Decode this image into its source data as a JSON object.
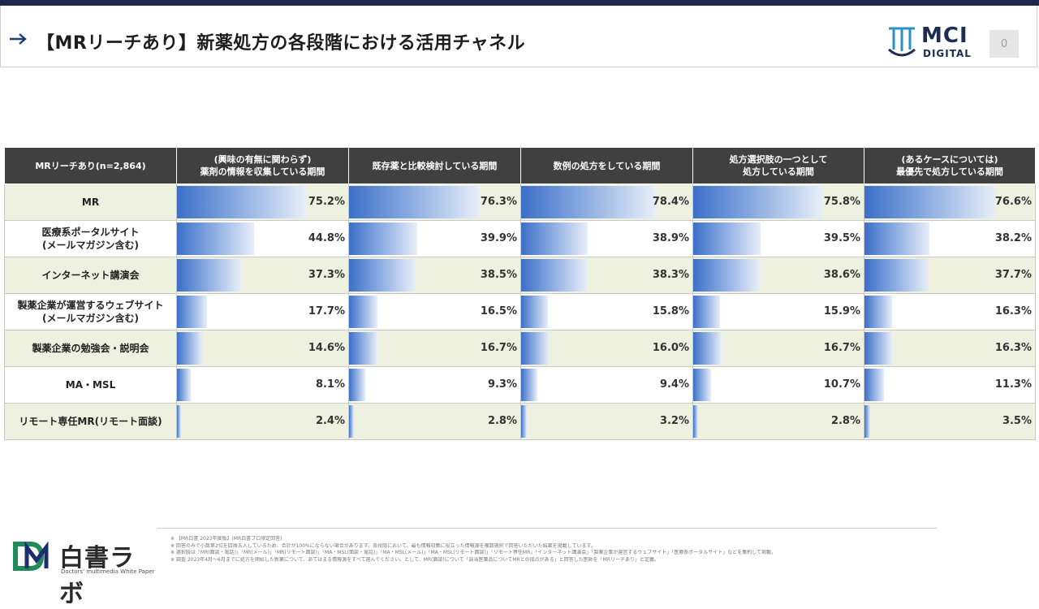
{
  "header": {
    "title": "【MRリーチあり】新薬処方の各段階における活用チャネル",
    "brand_line1": "MCI",
    "brand_line2": "DIGITAL",
    "page_number": "0"
  },
  "chart_data": {
    "type": "table",
    "corner_label": "MRリーチあり(n=2,864)",
    "columns": [
      "(興味の有無に関わらず)\n薬剤の情報を収集している期間",
      "既存薬と比較検討している期間",
      "数例の処方をしている期間",
      "処方選択肢の一つとして\n処方している期間",
      "(あるケースについては)\n最優先で処方している期間"
    ],
    "rows": [
      {
        "label": "MR",
        "values": [
          75.2,
          76.3,
          78.4,
          75.8,
          76.6
        ]
      },
      {
        "label": "医療系ポータルサイト\n(メールマガジン含む)",
        "values": [
          44.8,
          39.9,
          38.9,
          39.5,
          38.2
        ]
      },
      {
        "label": "インターネット講演会",
        "values": [
          37.3,
          38.5,
          38.3,
          38.6,
          37.7
        ]
      },
      {
        "label": "製薬企業が運営するウェブサイト\n(メールマガジン含む)",
        "values": [
          17.7,
          16.5,
          15.8,
          15.9,
          16.3
        ]
      },
      {
        "label": "製薬企業の勉強会・説明会",
        "values": [
          14.6,
          16.7,
          16.0,
          16.7,
          16.3
        ]
      },
      {
        "label": "MA・MSL",
        "values": [
          8.1,
          9.3,
          9.4,
          10.7,
          11.3
        ]
      },
      {
        "label": "リモート専任MR(リモート面談)",
        "values": [
          2.4,
          2.8,
          3.2,
          2.8,
          3.5
        ]
      }
    ],
    "unit": "%",
    "bar_scale_max": 100,
    "colors": {
      "bar": "#3c6fc7",
      "header_bg": "#404040",
      "row_alt": "#eef0e0"
    }
  },
  "footer": {
    "brand": "白書ラボ",
    "brand_sub": "Doctors' multimedia White Paper",
    "notes": [
      "※ 【MR白書 2023年度版】(MR白書プロ限定回答)",
      "※ 回答のみで小数第2位を四捨五入しているため、合計が100%にならない場合があります。各段階において、最も情報収集に役立った情報源を複数選択で回答いただいた結果を掲載しています。",
      "※ 選択肢は「MR(面談・電話)」「MR(メール)」「MR(リモート面談)」「MA・MSL(面談・電話)」「MA・MSL(メール)」「MA・MSL(リモート面談)」「リモート専任MR」「インターネット講演会」「製薬企業が運営するウェブサイト」「医療系ポータルサイト」などを集約して掲載。",
      "※ 調査:2023年4月〜6月までに処方を開始した新薬について、あてはまる情報源をすべて選んでください。として、MR(面談)について「該当医薬品についてMRとの接点がある」と回答した医師を「MRリーチあり」と定義。"
    ]
  }
}
